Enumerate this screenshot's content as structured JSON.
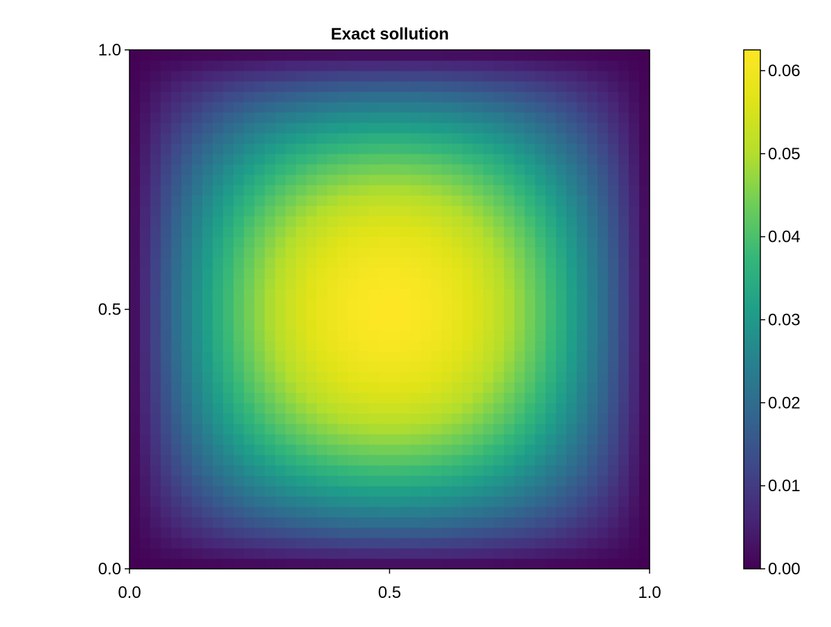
{
  "chart_data": {
    "type": "heatmap",
    "title": "Exact sollution",
    "xlabel": "",
    "ylabel": "",
    "xlim": [
      0.0,
      1.0
    ],
    "ylim": [
      0.0,
      1.0
    ],
    "x_ticks": [
      "0.0",
      "0.5",
      "1.0"
    ],
    "y_ticks": [
      "0.0",
      "0.5",
      "1.0"
    ],
    "grid": false,
    "grid_resolution": [
      50,
      50
    ],
    "function": "x*(1-x)*y*(1-y)",
    "value_range": [
      0.0,
      0.0625
    ],
    "colormap": "viridis",
    "colorbar": {
      "range": [
        0.0,
        0.0625
      ],
      "ticks": [
        "0.00",
        "0.01",
        "0.02",
        "0.03",
        "0.04",
        "0.05",
        "0.06"
      ],
      "placement": "right"
    }
  }
}
